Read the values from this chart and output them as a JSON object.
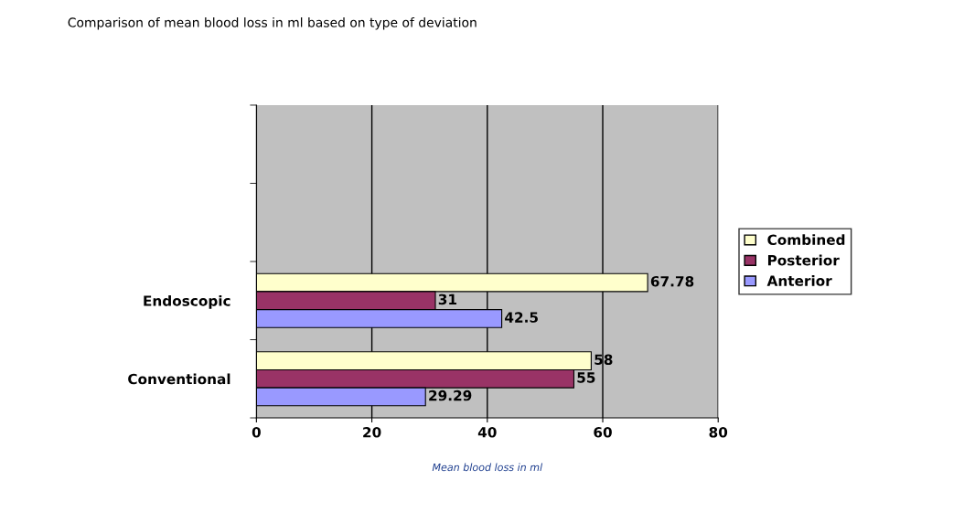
{
  "chart_data": {
    "type": "bar",
    "orientation": "horizontal",
    "title": "Comparison of mean blood loss in ml based on type of deviation",
    "xlabel": "Mean blood loss in ml",
    "categories": [
      null,
      null,
      "Endoscopic",
      "Conventional"
    ],
    "series": [
      {
        "name": "Combined",
        "color": "#ffffcc",
        "values": [
          null,
          null,
          67.78,
          58
        ]
      },
      {
        "name": "Posterior",
        "color": "#993366",
        "values": [
          null,
          null,
          31,
          55
        ]
      },
      {
        "name": "Anterior",
        "color": "#9999ff",
        "values": [
          null,
          null,
          42.5,
          29.29
        ]
      }
    ],
    "xlim": [
      0,
      80
    ],
    "xticks": [
      0,
      20,
      40,
      60,
      80
    ],
    "grid": "x",
    "legend": "right",
    "data_labels": true
  }
}
